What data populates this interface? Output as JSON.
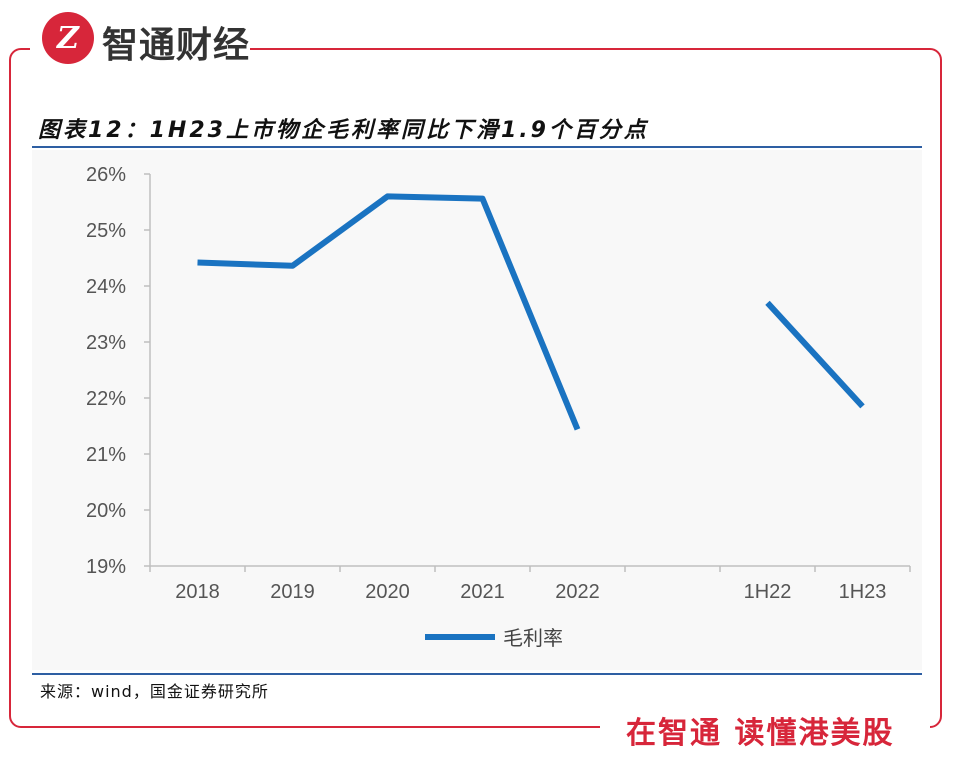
{
  "brand": {
    "logo_text": "Z",
    "name": "智通财经",
    "slogan": "在智通 读懂港美股"
  },
  "colors": {
    "accent": "#d7263a",
    "line": "#1a73c1",
    "rule": "#2e5fa3"
  },
  "source": "来源：wind，国金证券研究所",
  "chart_data": {
    "type": "line",
    "title": "图表12：1H23上市物企毛利率同比下滑1.9个百分点",
    "xlabel": "",
    "ylabel": "",
    "categories": [
      "2018",
      "2019",
      "2020",
      "2021",
      "2022",
      "",
      "1H22",
      "1H23"
    ],
    "y_ticks": [
      "19%",
      "20%",
      "21%",
      "22%",
      "23%",
      "24%",
      "25%",
      "26%"
    ],
    "ylim": [
      19,
      26
    ],
    "legend": {
      "position": "bottom-center"
    },
    "series": [
      {
        "name": "毛利率",
        "segments": [
          {
            "categories": [
              "2018",
              "2019",
              "2020",
              "2021",
              "2022"
            ],
            "values": [
              24.42,
              24.36,
              25.6,
              25.56,
              21.44
            ]
          },
          {
            "categories": [
              "1H22",
              "1H23"
            ],
            "values": [
              23.7,
              21.85
            ]
          }
        ]
      }
    ]
  }
}
